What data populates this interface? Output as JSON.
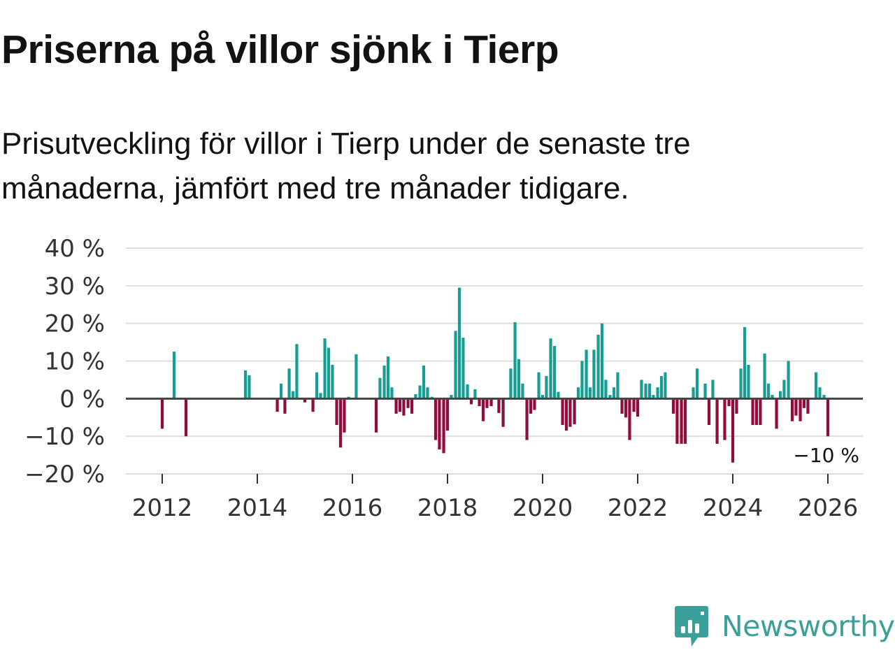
{
  "header": {
    "title": "Priserna på villor sjönk i Tierp",
    "subtitle": "Prisutveckling för villor i Tierp under de senaste tre månaderna, jämfört med tre månader tidigare."
  },
  "brand": {
    "name": "Newsworthy",
    "icon": "newsworthy-logo-icon",
    "color": "#3b9f9a"
  },
  "colors": {
    "positive": "#169e94",
    "negative": "#8f0c3c",
    "grid": "#dddddd",
    "zero_line": "#444444"
  },
  "chart_data": {
    "type": "bar",
    "title": "Priserna på villor sjönk i Tierp",
    "subtitle": "Prisutveckling för villor i Tierp under de senaste tre månaderna, jämfört med tre månader tidigare.",
    "xlabel": "",
    "ylabel": "",
    "ylim": [
      -20,
      40
    ],
    "xlim": [
      2011.25,
      2026.75
    ],
    "grid": true,
    "y_ticks": [
      40,
      30,
      20,
      10,
      0,
      -10,
      -20
    ],
    "y_tick_labels": [
      "40 %",
      "30 %",
      "20 %",
      "10 %",
      "0 %",
      "−10 %",
      "−20 %"
    ],
    "x_ticks": [
      2012,
      2014,
      2016,
      2018,
      2020,
      2022,
      2024,
      2026
    ],
    "x_tick_labels": [
      "2012",
      "2014",
      "2016",
      "2018",
      "2020",
      "2022",
      "2024",
      "2026"
    ],
    "end_label": "−10 %",
    "series": [
      {
        "name": "Prisutveckling",
        "points": [
          {
            "x": 2012.0,
            "y": -8
          },
          {
            "x": 2012.25,
            "y": 12.5
          },
          {
            "x": 2012.5,
            "y": -10
          },
          {
            "x": 2013.75,
            "y": 7.5
          },
          {
            "x": 2013.83,
            "y": 6.2
          },
          {
            "x": 2014.42,
            "y": -3.5
          },
          {
            "x": 2014.5,
            "y": 4
          },
          {
            "x": 2014.58,
            "y": -4
          },
          {
            "x": 2014.67,
            "y": 8
          },
          {
            "x": 2014.75,
            "y": 2
          },
          {
            "x": 2014.83,
            "y": 14.5
          },
          {
            "x": 2015.0,
            "y": -1
          },
          {
            "x": 2015.17,
            "y": -3.5
          },
          {
            "x": 2015.25,
            "y": 7
          },
          {
            "x": 2015.33,
            "y": 1.5
          },
          {
            "x": 2015.42,
            "y": 16
          },
          {
            "x": 2015.5,
            "y": 13.5
          },
          {
            "x": 2015.58,
            "y": 9
          },
          {
            "x": 2015.67,
            "y": -7
          },
          {
            "x": 2015.75,
            "y": -13
          },
          {
            "x": 2015.83,
            "y": -9
          },
          {
            "x": 2015.92,
            "y": 0.5
          },
          {
            "x": 2016.08,
            "y": 11.8
          },
          {
            "x": 2016.5,
            "y": -9
          },
          {
            "x": 2016.58,
            "y": 5.5
          },
          {
            "x": 2016.67,
            "y": 8.8
          },
          {
            "x": 2016.75,
            "y": 11.2
          },
          {
            "x": 2016.83,
            "y": 3
          },
          {
            "x": 2016.92,
            "y": -4
          },
          {
            "x": 2017.0,
            "y": -3.5
          },
          {
            "x": 2017.08,
            "y": -4.5
          },
          {
            "x": 2017.17,
            "y": -2.5
          },
          {
            "x": 2017.25,
            "y": -4
          },
          {
            "x": 2017.33,
            "y": 1.2
          },
          {
            "x": 2017.42,
            "y": 3.5
          },
          {
            "x": 2017.5,
            "y": 8.8
          },
          {
            "x": 2017.58,
            "y": 3
          },
          {
            "x": 2017.67,
            "y": 0.5
          },
          {
            "x": 2017.75,
            "y": -11
          },
          {
            "x": 2017.83,
            "y": -13.5
          },
          {
            "x": 2017.92,
            "y": -14.5
          },
          {
            "x": 2018.0,
            "y": -8.5
          },
          {
            "x": 2018.08,
            "y": 1
          },
          {
            "x": 2018.17,
            "y": 18
          },
          {
            "x": 2018.25,
            "y": 29.5
          },
          {
            "x": 2018.33,
            "y": 16.2
          },
          {
            "x": 2018.42,
            "y": 3.8
          },
          {
            "x": 2018.5,
            "y": -1.5
          },
          {
            "x": 2018.58,
            "y": 2.5
          },
          {
            "x": 2018.67,
            "y": -2
          },
          {
            "x": 2018.75,
            "y": -6
          },
          {
            "x": 2018.83,
            "y": -2.5
          },
          {
            "x": 2018.92,
            "y": -2
          },
          {
            "x": 2019.08,
            "y": -3.8
          },
          {
            "x": 2019.17,
            "y": -7.5
          },
          {
            "x": 2019.33,
            "y": 8
          },
          {
            "x": 2019.42,
            "y": 20.3
          },
          {
            "x": 2019.5,
            "y": 10.5
          },
          {
            "x": 2019.58,
            "y": 4
          },
          {
            "x": 2019.67,
            "y": -11
          },
          {
            "x": 2019.75,
            "y": -4
          },
          {
            "x": 2019.83,
            "y": -3
          },
          {
            "x": 2019.92,
            "y": 7
          },
          {
            "x": 2020.0,
            "y": 1
          },
          {
            "x": 2020.08,
            "y": 6
          },
          {
            "x": 2020.17,
            "y": 16
          },
          {
            "x": 2020.25,
            "y": 14
          },
          {
            "x": 2020.33,
            "y": 1.8
          },
          {
            "x": 2020.42,
            "y": -7
          },
          {
            "x": 2020.5,
            "y": -8.5
          },
          {
            "x": 2020.58,
            "y": -7.5
          },
          {
            "x": 2020.67,
            "y": -6.8
          },
          {
            "x": 2020.75,
            "y": 3
          },
          {
            "x": 2020.83,
            "y": 10
          },
          {
            "x": 2020.92,
            "y": 13
          },
          {
            "x": 2021.0,
            "y": 3
          },
          {
            "x": 2021.08,
            "y": 13
          },
          {
            "x": 2021.17,
            "y": 17
          },
          {
            "x": 2021.25,
            "y": 20
          },
          {
            "x": 2021.33,
            "y": 5
          },
          {
            "x": 2021.42,
            "y": 1
          },
          {
            "x": 2021.5,
            "y": 3
          },
          {
            "x": 2021.58,
            "y": 7
          },
          {
            "x": 2021.67,
            "y": -4
          },
          {
            "x": 2021.75,
            "y": -5
          },
          {
            "x": 2021.83,
            "y": -11
          },
          {
            "x": 2021.92,
            "y": -3.5
          },
          {
            "x": 2022.0,
            "y": -4.8
          },
          {
            "x": 2022.08,
            "y": 5
          },
          {
            "x": 2022.17,
            "y": 4
          },
          {
            "x": 2022.25,
            "y": 4
          },
          {
            "x": 2022.33,
            "y": 1
          },
          {
            "x": 2022.42,
            "y": 3
          },
          {
            "x": 2022.5,
            "y": 6
          },
          {
            "x": 2022.58,
            "y": 7
          },
          {
            "x": 2022.75,
            "y": -4
          },
          {
            "x": 2022.83,
            "y": -12
          },
          {
            "x": 2022.92,
            "y": -12
          },
          {
            "x": 2023.0,
            "y": -12
          },
          {
            "x": 2023.17,
            "y": 3
          },
          {
            "x": 2023.25,
            "y": 8
          },
          {
            "x": 2023.42,
            "y": 4
          },
          {
            "x": 2023.5,
            "y": -7
          },
          {
            "x": 2023.58,
            "y": 5
          },
          {
            "x": 2023.67,
            "y": -12
          },
          {
            "x": 2023.83,
            "y": -11
          },
          {
            "x": 2023.92,
            "y": -2
          },
          {
            "x": 2024.0,
            "y": -17
          },
          {
            "x": 2024.08,
            "y": -4
          },
          {
            "x": 2024.17,
            "y": 8
          },
          {
            "x": 2024.25,
            "y": 19
          },
          {
            "x": 2024.33,
            "y": 9
          },
          {
            "x": 2024.42,
            "y": -7
          },
          {
            "x": 2024.5,
            "y": -7
          },
          {
            "x": 2024.58,
            "y": -7
          },
          {
            "x": 2024.67,
            "y": 12
          },
          {
            "x": 2024.75,
            "y": 4
          },
          {
            "x": 2024.83,
            "y": 1
          },
          {
            "x": 2024.92,
            "y": -8
          },
          {
            "x": 2025.0,
            "y": 2
          },
          {
            "x": 2025.08,
            "y": 5
          },
          {
            "x": 2025.17,
            "y": 10
          },
          {
            "x": 2025.25,
            "y": -6
          },
          {
            "x": 2025.33,
            "y": -4.5
          },
          {
            "x": 2025.42,
            "y": -6
          },
          {
            "x": 2025.5,
            "y": -2.5
          },
          {
            "x": 2025.58,
            "y": -4
          },
          {
            "x": 2025.75,
            "y": 7
          },
          {
            "x": 2025.83,
            "y": 3
          },
          {
            "x": 2025.92,
            "y": 1
          },
          {
            "x": 2026.0,
            "y": -10
          }
        ]
      }
    ]
  }
}
